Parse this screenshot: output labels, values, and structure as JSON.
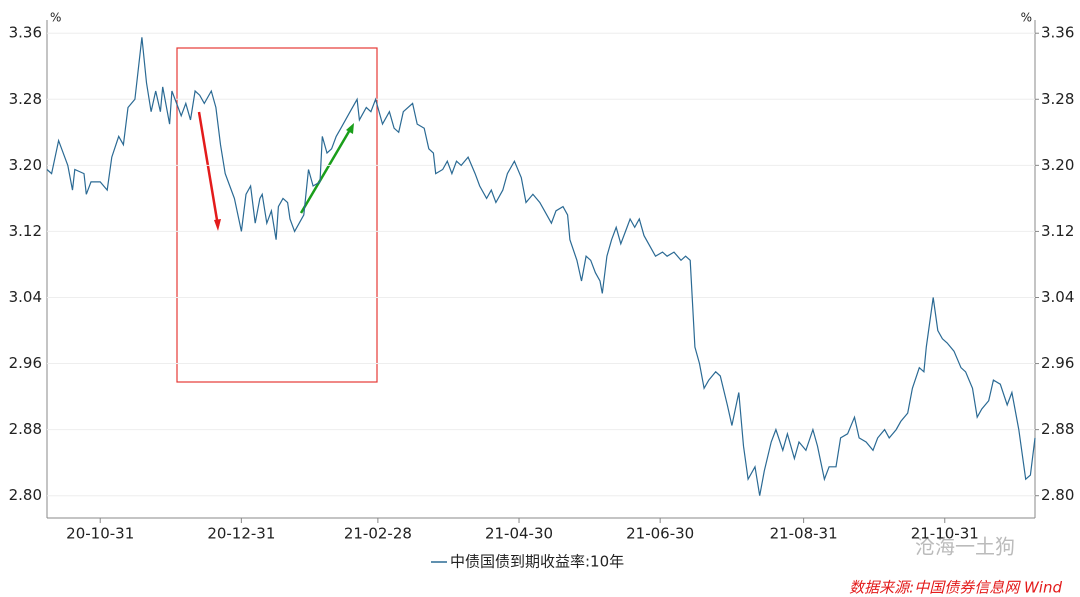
{
  "chart_data": {
    "type": "line",
    "y_unit": "%",
    "y2_unit": "%",
    "watermark": "沧海一土狗",
    "source": "数据来源:中国债券信息网 Wind",
    "grid": true,
    "xlim": [
      "20-10-08",
      "21-12-09"
    ],
    "xticks": [
      "20-10-31",
      "20-12-31",
      "21-02-28",
      "21-04-30",
      "21-06-30",
      "21-08-31",
      "21-10-31"
    ],
    "ylim": [
      2.773,
      3.376
    ],
    "yticks": [
      {
        "value": 2.8,
        "label": "2.80"
      },
      2.88,
      2.96,
      3.04,
      3.12,
      {
        "value": 3.2,
        "label": "3.20"
      },
      3.28,
      3.36
    ],
    "y2lim": [
      2.773,
      3.376
    ],
    "y2ticks": [
      {
        "value": 2.8,
        "label": "2.80"
      },
      2.88,
      2.96,
      3.04,
      3.12,
      {
        "value": 3.2,
        "label": "3.20"
      },
      3.28,
      3.36
    ],
    "x": [
      "20-10-08",
      "20-10-10",
      "20-10-13",
      "20-10-17",
      "20-10-19",
      "20-10-20",
      "20-10-24",
      "20-10-25",
      "20-10-27",
      "20-10-31",
      "20-11-03",
      "20-11-05",
      "20-11-08",
      "20-11-10",
      "20-11-12",
      "20-11-15",
      "20-11-18",
      "20-11-20",
      "20-11-22",
      "20-11-24",
      "20-11-26",
      "20-11-27",
      "20-11-30",
      "20-12-01",
      "20-12-03",
      "20-12-05",
      "20-12-07",
      "20-12-09",
      "20-12-11",
      "20-12-13",
      "20-12-15",
      "20-12-18",
      "20-12-20",
      "20-12-22",
      "20-12-24",
      "20-12-26",
      "20-12-28",
      "20-12-31",
      "21-01-02",
      "21-01-04",
      "21-01-06",
      "21-01-08",
      "21-01-09",
      "21-01-11",
      "21-01-13",
      "21-01-15",
      "21-01-16",
      "21-01-18",
      "21-01-20",
      "21-01-21",
      "21-01-23",
      "21-01-25",
      "21-01-27",
      "21-01-29",
      "21-01-31",
      "21-02-03",
      "21-02-04",
      "21-02-06",
      "21-02-08",
      "21-02-10",
      "21-02-12",
      "21-02-14",
      "21-02-16",
      "21-02-19",
      "21-02-20",
      "21-02-23",
      "21-02-25",
      "21-02-27",
      "21-02-28",
      "21-03-02",
      "21-03-05",
      "21-03-07",
      "21-03-09",
      "21-03-11",
      "21-03-15",
      "21-03-17",
      "21-03-20",
      "21-03-22",
      "21-03-24",
      "21-03-25",
      "21-03-28",
      "21-03-30",
      "21-04-01",
      "21-04-03",
      "21-04-05",
      "21-04-08",
      "21-04-11",
      "21-04-13",
      "21-04-16",
      "21-04-18",
      "21-04-20",
      "21-04-23",
      "21-04-25",
      "21-04-28",
      "21-05-01",
      "21-05-03",
      "21-05-06",
      "21-05-09",
      "21-05-11",
      "21-05-14",
      "21-05-16",
      "21-05-19",
      "21-05-21",
      "21-05-22",
      "21-05-25",
      "21-05-27",
      "21-05-29",
      "21-05-31",
      "21-06-02",
      "21-06-04",
      "21-06-05",
      "21-06-07",
      "21-06-09",
      "21-06-11",
      "21-06-13",
      "21-06-15",
      "21-06-17",
      "21-06-19",
      "21-06-21",
      "21-06-23",
      "21-06-26",
      "21-06-28",
      "21-07-01",
      "21-07-03",
      "21-07-06",
      "21-07-09",
      "21-07-11",
      "21-07-13",
      "21-07-15",
      "21-07-17",
      "21-07-19",
      "21-07-21",
      "21-07-24",
      "21-07-26",
      "21-07-29",
      "21-07-31",
      "21-08-03",
      "21-08-05",
      "21-08-07",
      "21-08-10",
      "21-08-12",
      "21-08-14",
      "21-08-17",
      "21-08-19",
      "21-08-22",
      "21-08-24",
      "21-08-27",
      "21-08-29",
      "21-09-01",
      "21-09-04",
      "21-09-06",
      "21-09-09",
      "21-09-11",
      "21-09-14",
      "21-09-16",
      "21-09-19",
      "21-09-22",
      "21-09-24",
      "21-09-27",
      "21-09-30",
      "21-10-02",
      "21-10-05",
      "21-10-07",
      "21-10-10",
      "21-10-12",
      "21-10-15",
      "21-10-17",
      "21-10-20",
      "21-10-22",
      "21-10-23",
      "21-10-26",
      "21-10-28",
      "21-10-30",
      "21-11-01",
      "21-11-04",
      "21-11-07",
      "21-11-09",
      "21-11-12",
      "21-11-14",
      "21-11-16",
      "21-11-19",
      "21-11-21",
      "21-11-24",
      "21-11-27",
      "21-11-29",
      "21-12-02",
      "21-12-05",
      "21-12-07",
      "21-12-09"
    ],
    "series": [
      {
        "name": "中债国债到期收益率:10年",
        "color": "#2b6a94",
        "values": [
          3.195,
          3.19,
          3.23,
          3.2,
          3.17,
          3.195,
          3.19,
          3.165,
          3.18,
          3.18,
          3.17,
          3.21,
          3.235,
          3.225,
          3.27,
          3.28,
          3.355,
          3.3,
          3.265,
          3.29,
          3.265,
          3.295,
          3.25,
          3.29,
          3.275,
          3.26,
          3.275,
          3.255,
          3.29,
          3.285,
          3.275,
          3.29,
          3.27,
          3.225,
          3.19,
          3.175,
          3.16,
          3.12,
          3.165,
          3.175,
          3.13,
          3.16,
          3.165,
          3.13,
          3.145,
          3.11,
          3.15,
          3.16,
          3.155,
          3.135,
          3.12,
          3.13,
          3.14,
          3.195,
          3.175,
          3.18,
          3.235,
          3.215,
          3.22,
          3.235,
          3.245,
          3.255,
          3.265,
          3.28,
          3.255,
          3.27,
          3.265,
          3.28,
          3.27,
          3.25,
          3.265,
          3.245,
          3.24,
          3.265,
          3.275,
          3.25,
          3.245,
          3.22,
          3.215,
          3.19,
          3.195,
          3.205,
          3.19,
          3.205,
          3.2,
          3.21,
          3.19,
          3.175,
          3.16,
          3.17,
          3.155,
          3.17,
          3.19,
          3.205,
          3.185,
          3.155,
          3.165,
          3.155,
          3.145,
          3.13,
          3.145,
          3.15,
          3.14,
          3.11,
          3.085,
          3.06,
          3.09,
          3.085,
          3.07,
          3.06,
          3.045,
          3.09,
          3.11,
          3.125,
          3.105,
          3.12,
          3.135,
          3.125,
          3.135,
          3.115,
          3.1,
          3.09,
          3.095,
          3.09,
          3.095,
          3.085,
          3.09,
          3.085,
          2.98,
          2.96,
          2.93,
          2.94,
          2.95,
          2.945,
          2.91,
          2.885,
          2.925,
          2.86,
          2.82,
          2.835,
          2.8,
          2.83,
          2.865,
          2.88,
          2.855,
          2.875,
          2.845,
          2.865,
          2.855,
          2.88,
          2.86,
          2.82,
          2.835,
          2.835,
          2.87,
          2.875,
          2.895,
          2.87,
          2.865,
          2.855,
          2.87,
          2.88,
          2.87,
          2.88,
          2.89,
          2.9,
          2.93,
          2.955,
          2.95,
          2.98,
          3.04,
          3.0,
          2.99,
          2.985,
          2.975,
          2.955,
          2.95,
          2.93,
          2.895,
          2.905,
          2.915,
          2.94,
          2.935,
          2.91,
          2.925,
          2.88,
          2.82,
          2.825,
          2.87
        ]
      }
    ]
  }
}
